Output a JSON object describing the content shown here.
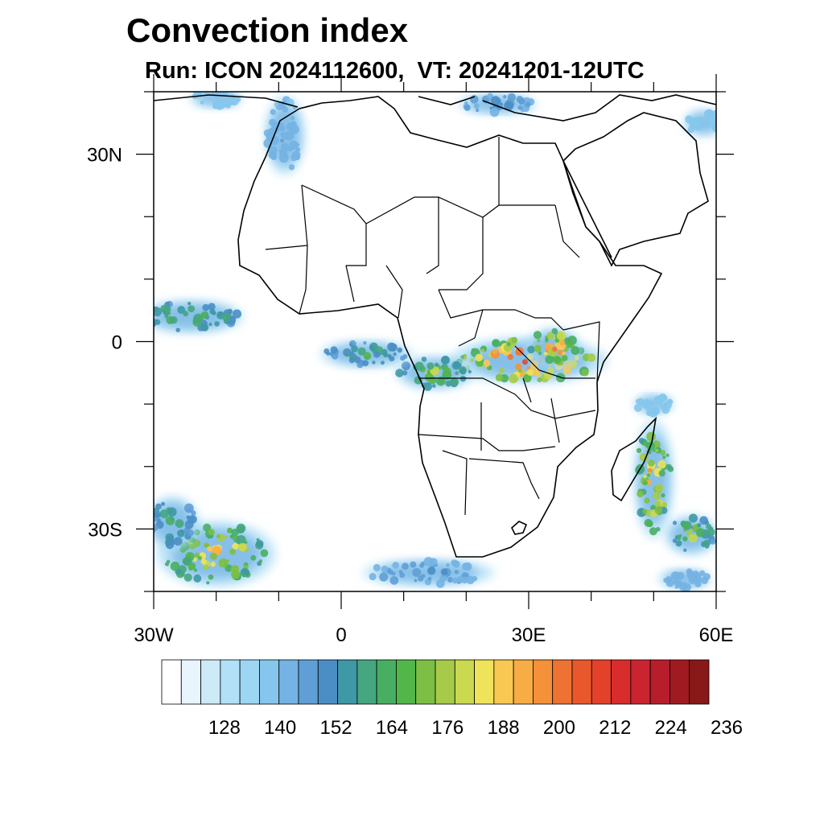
{
  "title": "Convection index",
  "subtitle": "Run: ICON 2024112600,  VT: 20241201-12UTC",
  "map": {
    "projection": "cylindrical-equidistant",
    "lon_range": [
      -30,
      60
    ],
    "lat_range": [
      -40,
      40
    ],
    "x_ticks": [
      {
        "lon": -30,
        "label": "30W"
      },
      {
        "lon": 0,
        "label": "0"
      },
      {
        "lon": 30,
        "label": "30E"
      },
      {
        "lon": 60,
        "label": "60E"
      }
    ],
    "y_ticks": [
      {
        "lat": 30,
        "label": "30N"
      },
      {
        "lat": 0,
        "label": "0"
      },
      {
        "lat": -30,
        "label": "30S"
      }
    ],
    "minor_lon_step": 10,
    "minor_lat_step": 10
  },
  "colorbar": {
    "labels": [
      "128",
      "140",
      "152",
      "164",
      "176",
      "188",
      "200",
      "212",
      "224",
      "236"
    ],
    "colors": [
      "#ffffff",
      "#e8f5fc",
      "#cdeaf8",
      "#b2e0f6",
      "#9dd6f3",
      "#86c6ec",
      "#74b3e3",
      "#5f9fd5",
      "#4a8ec5",
      "#3e98a6",
      "#45a67f",
      "#48ae62",
      "#52b649",
      "#7dbf45",
      "#a6cb49",
      "#cad94f",
      "#eee35a",
      "#f8c852",
      "#f8ac44",
      "#f4913a",
      "#ee7332",
      "#e8582c",
      "#e3412a",
      "#d92c2c",
      "#c92430",
      "#b81d2b",
      "#a01a22",
      "#891818"
    ]
  },
  "convection_areas": [
    {
      "name": "central-africa-band",
      "lon": 30,
      "lat": -3,
      "rlon": 12,
      "rlat": 3.5,
      "intensity": 200
    },
    {
      "name": "lake-victoria-cells",
      "lon": 34,
      "lat": -1,
      "rlon": 4,
      "rlat": 3,
      "intensity": 190
    },
    {
      "name": "congo-west-cells",
      "lon": 15,
      "lat": -5,
      "rlon": 6,
      "rlat": 2.5,
      "intensity": 170
    },
    {
      "name": "gulf-of-guinea",
      "lon": 4,
      "lat": -2,
      "rlon": 7,
      "rlat": 2,
      "intensity": 160
    },
    {
      "name": "west-atlantic-itcz",
      "lon": -24,
      "lat": 4,
      "rlon": 8,
      "rlat": 2.5,
      "intensity": 165
    },
    {
      "name": "madagascar-east",
      "lon": 50,
      "lat": -22,
      "rlon": 3,
      "rlat": 9,
      "intensity": 185
    },
    {
      "name": "madagascar-south-tail",
      "lon": 56,
      "lat": -31,
      "rlon": 4,
      "rlat": 3,
      "intensity": 170
    },
    {
      "name": "south-atlantic-front",
      "lon": -20,
      "lat": -34,
      "rlon": 9,
      "rlat": 5,
      "intensity": 180
    },
    {
      "name": "south-atlantic-west",
      "lon": -27,
      "lat": -29,
      "rlon": 4,
      "rlat": 4,
      "intensity": 160
    },
    {
      "name": "south-of-africa",
      "lon": 14,
      "lat": -37,
      "rlon": 10,
      "rlat": 2,
      "intensity": 150
    },
    {
      "name": "morocco-band",
      "lon": -9,
      "lat": 33,
      "rlon": 3,
      "rlat": 6,
      "intensity": 145
    },
    {
      "name": "mediterranean-east",
      "lon": 25,
      "lat": 38,
      "rlon": 6,
      "rlat": 1.5,
      "intensity": 150
    },
    {
      "name": "atlantic-north",
      "lon": -20,
      "lat": 39,
      "rlon": 4,
      "rlat": 1.5,
      "intensity": 140
    },
    {
      "name": "arabian-sea-east",
      "lon": 58,
      "lat": 35,
      "rlon": 3,
      "rlat": 2,
      "intensity": 140
    },
    {
      "name": "indian-ocean-se",
      "lon": 55,
      "lat": -38,
      "rlon": 4,
      "rlat": 1.5,
      "intensity": 145
    },
    {
      "name": "indian-ocean-ne",
      "lon": 50,
      "lat": -10,
      "rlon": 3,
      "rlat": 1.5,
      "intensity": 140
    }
  ]
}
